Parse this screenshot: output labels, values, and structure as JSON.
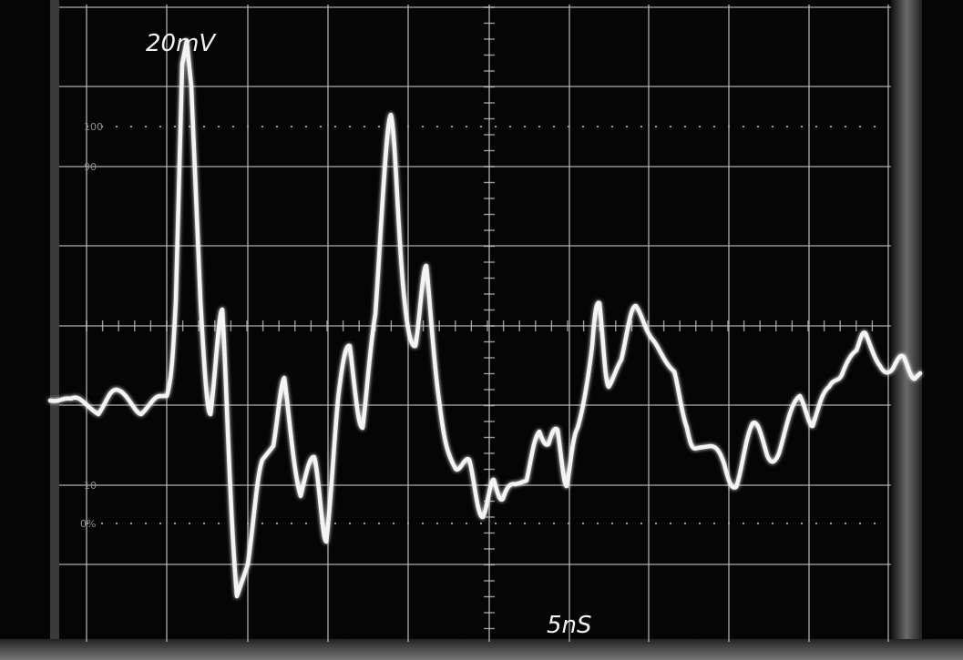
{
  "screen": {
    "vertical_scale": "20mV",
    "time_scale": "5nS",
    "graticule_labels": [
      "100",
      "90",
      "10",
      "0%"
    ]
  }
}
